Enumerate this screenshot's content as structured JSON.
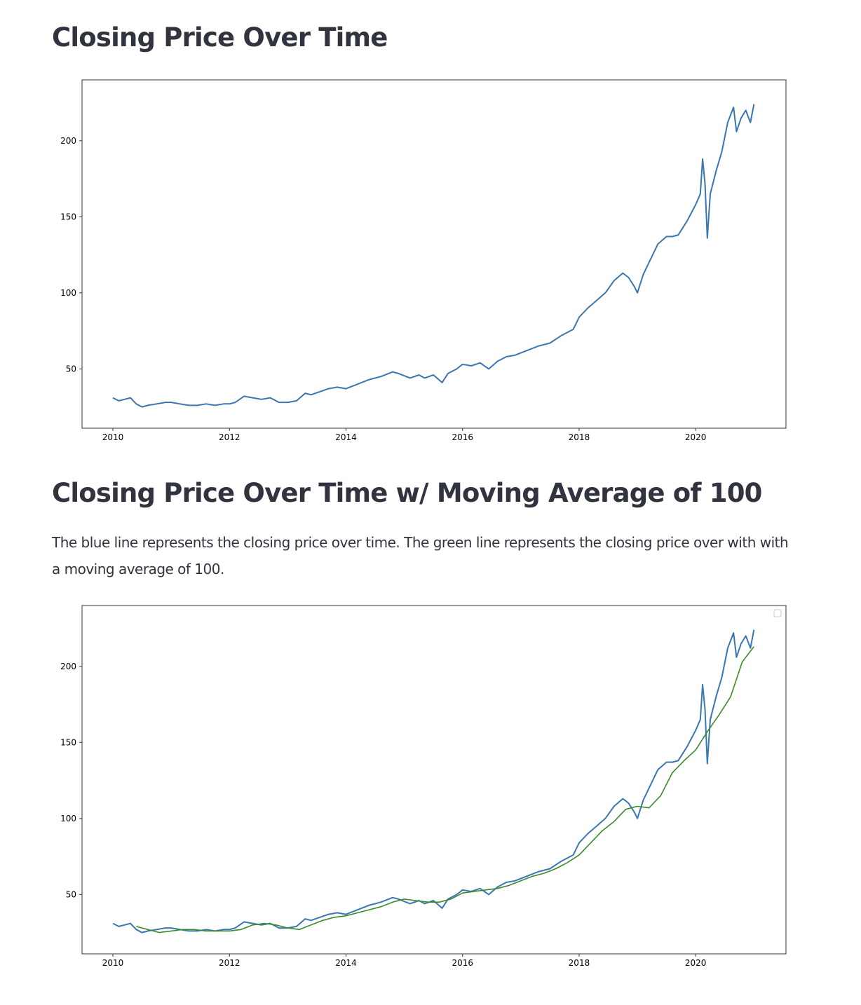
{
  "sections": [
    {
      "title": "Closing Price Over Time"
    },
    {
      "title": "Closing Price Over Time w/ Moving Average of 100",
      "description": "The blue line represents the closing price over time. The green line represents the closing price over with with a moving average of 100."
    }
  ],
  "colors": {
    "close": "#3a76af",
    "moving_average": "#3c8a2b",
    "axes": "#333333"
  },
  "chart_data": [
    {
      "type": "line",
      "title": "",
      "xlabel": "",
      "ylabel": "",
      "xlim": [
        2009.47,
        2021.55
      ],
      "ylim": [
        11,
        240
      ],
      "xticks": [
        2010,
        2012,
        2014,
        2016,
        2018,
        2020
      ],
      "xtick_labels": [
        "2010",
        "2012",
        "2014",
        "2016",
        "2018",
        "2020"
      ],
      "yticks": [
        50,
        100,
        150,
        200
      ],
      "ytick_labels": [
        "50",
        "100",
        "150",
        "200"
      ],
      "grid": false,
      "series": [
        {
          "role": "close",
          "x": [
            2010.0,
            2010.1,
            2010.2,
            2010.3,
            2010.4,
            2010.5,
            2010.6,
            2010.75,
            2010.9,
            2011.0,
            2011.15,
            2011.3,
            2011.45,
            2011.6,
            2011.75,
            2011.9,
            2012.0,
            2012.1,
            2012.25,
            2012.4,
            2012.55,
            2012.7,
            2012.85,
            2013.0,
            2013.15,
            2013.3,
            2013.4,
            2013.55,
            2013.7,
            2013.85,
            2014.0,
            2014.2,
            2014.4,
            2014.6,
            2014.8,
            2014.9,
            2015.1,
            2015.25,
            2015.35,
            2015.5,
            2015.65,
            2015.75,
            2015.9,
            2016.0,
            2016.15,
            2016.3,
            2016.45,
            2016.6,
            2016.75,
            2016.9,
            2017.1,
            2017.3,
            2017.5,
            2017.7,
            2017.9,
            2018.0,
            2018.15,
            2018.3,
            2018.45,
            2018.6,
            2018.75,
            2018.85,
            2018.95,
            2019.0,
            2019.1,
            2019.2,
            2019.35,
            2019.5,
            2019.6,
            2019.7,
            2019.85,
            2020.0,
            2020.08,
            2020.12,
            2020.16,
            2020.2,
            2020.25,
            2020.35,
            2020.45,
            2020.55,
            2020.65,
            2020.7,
            2020.78,
            2020.86,
            2020.94,
            2021.0
          ],
          "y": [
            31,
            29,
            30,
            31,
            27,
            25,
            26,
            27,
            28,
            28,
            27,
            26,
            26,
            27,
            26,
            27,
            27,
            28,
            32,
            31,
            30,
            31,
            28,
            28,
            29,
            34,
            33,
            35,
            37,
            38,
            37,
            40,
            43,
            45,
            48,
            47,
            44,
            46,
            44,
            46,
            41,
            47,
            50,
            53,
            52,
            54,
            50,
            55,
            58,
            59,
            62,
            65,
            67,
            72,
            76,
            84,
            90,
            95,
            100,
            108,
            113,
            110,
            104,
            100,
            112,
            120,
            132,
            137,
            137,
            138,
            147,
            158,
            165,
            188,
            172,
            136,
            165,
            180,
            193,
            212,
            222,
            206,
            215,
            220,
            212,
            224
          ]
        }
      ]
    },
    {
      "type": "line",
      "title": "",
      "xlabel": "",
      "ylabel": "",
      "xlim": [
        2009.47,
        2021.55
      ],
      "ylim": [
        11,
        240
      ],
      "xticks": [
        2010,
        2012,
        2014,
        2016,
        2018,
        2020
      ],
      "xtick_labels": [
        "2010",
        "2012",
        "2014",
        "2016",
        "2018",
        "2020"
      ],
      "yticks": [
        50,
        100,
        150,
        200
      ],
      "ytick_labels": [
        "50",
        "100",
        "150",
        "200"
      ],
      "grid": false,
      "legend": "top-right (empty)",
      "series": [
        {
          "role": "close",
          "x": [
            2010.0,
            2010.1,
            2010.2,
            2010.3,
            2010.4,
            2010.5,
            2010.6,
            2010.75,
            2010.9,
            2011.0,
            2011.15,
            2011.3,
            2011.45,
            2011.6,
            2011.75,
            2011.9,
            2012.0,
            2012.1,
            2012.25,
            2012.4,
            2012.55,
            2012.7,
            2012.85,
            2013.0,
            2013.15,
            2013.3,
            2013.4,
            2013.55,
            2013.7,
            2013.85,
            2014.0,
            2014.2,
            2014.4,
            2014.6,
            2014.8,
            2014.9,
            2015.1,
            2015.25,
            2015.35,
            2015.5,
            2015.65,
            2015.75,
            2015.9,
            2016.0,
            2016.15,
            2016.3,
            2016.45,
            2016.6,
            2016.75,
            2016.9,
            2017.1,
            2017.3,
            2017.5,
            2017.7,
            2017.9,
            2018.0,
            2018.15,
            2018.3,
            2018.45,
            2018.6,
            2018.75,
            2018.85,
            2018.95,
            2019.0,
            2019.1,
            2019.2,
            2019.35,
            2019.5,
            2019.6,
            2019.7,
            2019.85,
            2020.0,
            2020.08,
            2020.12,
            2020.16,
            2020.2,
            2020.25,
            2020.35,
            2020.45,
            2020.55,
            2020.65,
            2020.7,
            2020.78,
            2020.86,
            2020.94,
            2021.0
          ],
          "y": [
            31,
            29,
            30,
            31,
            27,
            25,
            26,
            27,
            28,
            28,
            27,
            26,
            26,
            27,
            26,
            27,
            27,
            28,
            32,
            31,
            30,
            31,
            28,
            28,
            29,
            34,
            33,
            35,
            37,
            38,
            37,
            40,
            43,
            45,
            48,
            47,
            44,
            46,
            44,
            46,
            41,
            47,
            50,
            53,
            52,
            54,
            50,
            55,
            58,
            59,
            62,
            65,
            67,
            72,
            76,
            84,
            90,
            95,
            100,
            108,
            113,
            110,
            104,
            100,
            112,
            120,
            132,
            137,
            137,
            138,
            147,
            158,
            165,
            188,
            172,
            136,
            165,
            180,
            193,
            212,
            222,
            206,
            215,
            220,
            212,
            224
          ]
        },
        {
          "role": "moving_average",
          "x": [
            2010.4,
            2010.6,
            2010.8,
            2011.0,
            2011.2,
            2011.4,
            2011.6,
            2011.8,
            2012.0,
            2012.2,
            2012.4,
            2012.6,
            2012.8,
            2013.0,
            2013.2,
            2013.4,
            2013.6,
            2013.8,
            2014.0,
            2014.2,
            2014.4,
            2014.6,
            2014.8,
            2015.0,
            2015.2,
            2015.4,
            2015.6,
            2015.8,
            2016.0,
            2016.2,
            2016.4,
            2016.6,
            2016.8,
            2017.0,
            2017.2,
            2017.4,
            2017.6,
            2017.8,
            2018.0,
            2018.2,
            2018.4,
            2018.6,
            2018.8,
            2019.0,
            2019.2,
            2019.4,
            2019.6,
            2019.8,
            2020.0,
            2020.2,
            2020.4,
            2020.6,
            2020.8,
            2021.0
          ],
          "y": [
            29,
            27,
            25,
            26,
            27,
            27,
            26,
            26,
            26,
            27,
            30,
            31,
            30,
            28,
            27,
            30,
            33,
            35,
            36,
            38,
            40,
            42,
            45,
            47,
            46,
            45,
            45,
            47,
            51,
            52,
            53,
            54,
            56,
            59,
            62,
            64,
            67,
            71,
            76,
            84,
            92,
            98,
            106,
            108,
            107,
            115,
            130,
            138,
            145,
            157,
            168,
            180,
            203,
            213
          ]
        }
      ]
    }
  ]
}
